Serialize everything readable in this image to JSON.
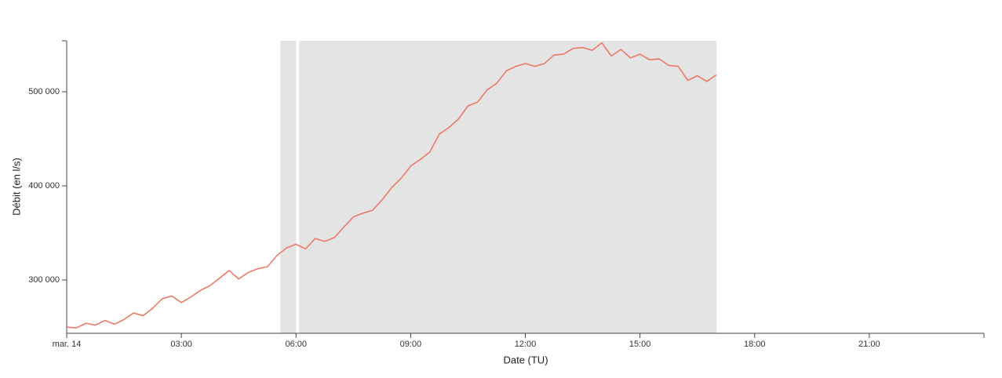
{
  "chart_data": {
    "type": "line",
    "x_label": "Date (TU)",
    "y_label": "Débit (en l/s)",
    "xlim": [
      0,
      24
    ],
    "xticks": [
      {
        "value": 0,
        "label": "mar. 14"
      },
      {
        "value": 3,
        "label": "03:00"
      },
      {
        "value": 6,
        "label": "06:00"
      },
      {
        "value": 9,
        "label": "09:00"
      },
      {
        "value": 12,
        "label": "12:00"
      },
      {
        "value": 15,
        "label": "15:00"
      },
      {
        "value": 18,
        "label": "18:00"
      },
      {
        "value": 21,
        "label": "21:00"
      }
    ],
    "ylim": [
      243333,
      554167
    ],
    "yticks": [
      {
        "value": 300000,
        "label": "300 000"
      },
      {
        "value": 400000,
        "label": "400 000"
      },
      {
        "value": 500000,
        "label": "500 000"
      }
    ],
    "shaded_regions": [
      [
        5.59,
        6.0
      ],
      [
        6.08,
        17.0
      ]
    ],
    "shade_color": "#e4e4e4",
    "x": [
      0,
      0.25,
      0.5,
      0.75,
      1,
      1.25,
      1.5,
      1.75,
      2,
      2.25,
      2.5,
      2.75,
      3,
      3.25,
      3.5,
      3.75,
      4,
      4.25,
      4.5,
      4.75,
      5,
      5.25,
      5.5,
      5.75,
      6,
      6.25,
      6.5,
      6.75,
      7,
      7.25,
      7.5,
      7.75,
      8,
      8.25,
      8.5,
      8.75,
      9,
      9.25,
      9.5,
      9.75,
      10,
      10.25,
      10.5,
      10.75,
      11,
      11.25,
      11.5,
      11.75,
      12,
      12.25,
      12.5,
      12.75,
      13,
      13.25,
      13.5,
      13.75,
      14,
      14.25,
      14.5,
      14.75,
      15,
      15.25,
      15.5,
      15.75,
      16,
      16.25,
      16.5,
      16.75,
      17
    ],
    "series": [
      {
        "color": "#ee735f",
        "values": [
          250000,
          249000,
          254000,
          252000,
          257000,
          253000,
          258000,
          265000,
          262000,
          270000,
          280000,
          283000,
          276000,
          282000,
          289000,
          294000,
          302000,
          310000,
          301000,
          308000,
          312000,
          314000,
          326000,
          334000,
          338000,
          333000,
          344000,
          341000,
          345000,
          356000,
          367000,
          371000,
          374000,
          385000,
          398000,
          408000,
          421000,
          428000,
          436000,
          455000,
          462000,
          471000,
          485000,
          489000,
          502000,
          509000,
          522000,
          527000,
          530000,
          527000,
          530000,
          539000,
          540000,
          546000,
          547000,
          544000,
          552000,
          538000,
          545000,
          536000,
          540000,
          534000,
          535000,
          528000,
          527000,
          512000,
          517000,
          511000,
          518000
        ]
      }
    ]
  }
}
